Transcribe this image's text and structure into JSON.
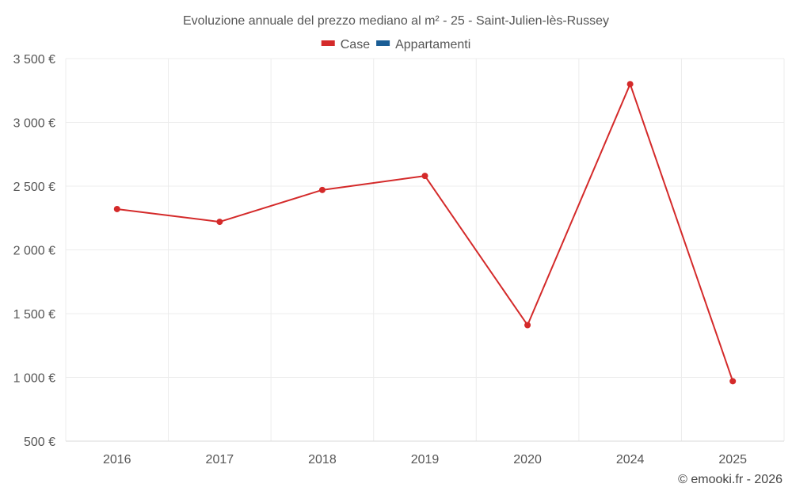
{
  "chart_data": {
    "type": "line",
    "title": "Evoluzione annuale del prezzo mediano al m² - 25 - Saint-Julien-lès-Russey",
    "categories": [
      "2016",
      "2017",
      "2018",
      "2019",
      "2020",
      "2024",
      "2025"
    ],
    "series": [
      {
        "name": "Case",
        "color": "#d42a2a",
        "values": [
          2320,
          2220,
          2470,
          2580,
          1410,
          3300,
          970
        ]
      },
      {
        "name": "Appartamenti",
        "color": "#1a5d95",
        "values": [
          null,
          null,
          null,
          null,
          null,
          null,
          null
        ]
      }
    ],
    "ylim": [
      500,
      3500
    ],
    "yticks": [
      500,
      1000,
      1500,
      2000,
      2500,
      3000,
      3500
    ],
    "ytick_labels": [
      "500 €",
      "1 000 €",
      "1 500 €",
      "2 000 €",
      "2 500 €",
      "3 000 €",
      "3 500 €"
    ],
    "xlabel": "",
    "ylabel": "",
    "grid": true,
    "legend": "top-center"
  },
  "credit": "© emooki.fr - 2026"
}
